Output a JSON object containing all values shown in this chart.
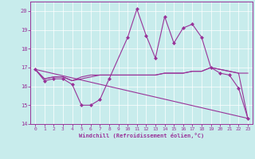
{
  "background_color": "#c8ecec",
  "line_color": "#993399",
  "grid_color": "#aadddd",
  "xlim": [
    -0.5,
    23.5
  ],
  "ylim": [
    14,
    20.5
  ],
  "yticks": [
    14,
    15,
    16,
    17,
    18,
    19,
    20
  ],
  "xticks": [
    0,
    1,
    2,
    3,
    4,
    5,
    6,
    7,
    8,
    9,
    10,
    11,
    12,
    13,
    14,
    15,
    16,
    17,
    18,
    19,
    20,
    21,
    22,
    23
  ],
  "xlabel": "Windchill (Refroidissement éolien,°C)",
  "line1_x": [
    0,
    1,
    2,
    3,
    4,
    5,
    6,
    7,
    8,
    10,
    11,
    12,
    13,
    14,
    15,
    16,
    17,
    18,
    19,
    20,
    21,
    22,
    23
  ],
  "line1_y": [
    16.9,
    16.3,
    16.4,
    16.4,
    16.1,
    15.0,
    15.0,
    15.3,
    16.4,
    18.6,
    20.1,
    18.7,
    17.5,
    19.7,
    18.3,
    19.1,
    19.3,
    18.6,
    17.0,
    16.7,
    16.6,
    15.9,
    14.3
  ],
  "line2_x": [
    0,
    1,
    2,
    3,
    4,
    5,
    6,
    7,
    8,
    10,
    11,
    12,
    13,
    14,
    15,
    16,
    17,
    18,
    19,
    20,
    21,
    22,
    23
  ],
  "line2_y": [
    16.9,
    16.4,
    16.5,
    16.5,
    16.3,
    16.5,
    16.6,
    16.6,
    16.6,
    16.6,
    16.6,
    16.6,
    16.6,
    16.7,
    16.7,
    16.7,
    16.8,
    16.8,
    17.0,
    16.9,
    16.8,
    16.7,
    14.3
  ],
  "line3_x": [
    0,
    23
  ],
  "line3_y": [
    16.9,
    14.3
  ],
  "line4_x": [
    0,
    1,
    2,
    3,
    4,
    5,
    6,
    7,
    8,
    10,
    11,
    12,
    13,
    14,
    15,
    16,
    17,
    18,
    19,
    20,
    21,
    22,
    23
  ],
  "line4_y": [
    16.9,
    16.4,
    16.5,
    16.5,
    16.3,
    16.4,
    16.5,
    16.6,
    16.6,
    16.6,
    16.6,
    16.6,
    16.6,
    16.7,
    16.7,
    16.7,
    16.8,
    16.8,
    17.0,
    16.9,
    16.8,
    16.7,
    16.7
  ]
}
